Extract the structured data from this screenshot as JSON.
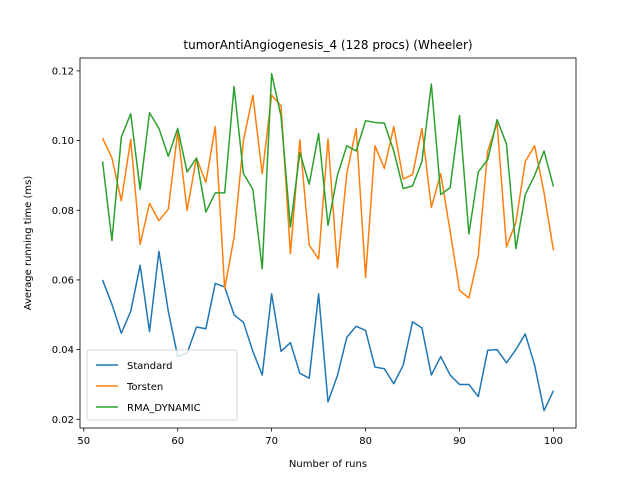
{
  "chart_data": {
    "type": "line",
    "title": "tumorAntiAngiogenesis_4 (128 procs) (Wheeler)",
    "xlabel": "Number of runs",
    "ylabel": "Average running time (ms)",
    "xlim": [
      49.6,
      102.4
    ],
    "ylim": [
      0.0175,
      0.1237
    ],
    "xticks": [
      50,
      60,
      70,
      80,
      90,
      100
    ],
    "xtick_labels": [
      "50",
      "60",
      "70",
      "80",
      "90",
      "100"
    ],
    "yticks": [
      0.02,
      0.04,
      0.06,
      0.08,
      0.1,
      0.12
    ],
    "ytick_labels": [
      "0.02",
      "0.04",
      "0.06",
      "0.08",
      "0.10",
      "0.12"
    ],
    "grid": false,
    "legend_position": "lower-left",
    "x": [
      52,
      53,
      54,
      55,
      56,
      57,
      58,
      59,
      60,
      61,
      62,
      63,
      64,
      65,
      66,
      67,
      68,
      69,
      70,
      71,
      72,
      73,
      74,
      75,
      76,
      77,
      78,
      79,
      80,
      81,
      82,
      83,
      84,
      85,
      86,
      87,
      88,
      89,
      90,
      91,
      92,
      93,
      94,
      95,
      96,
      97,
      98,
      99,
      100
    ],
    "series": [
      {
        "name": "Standard",
        "color": "#1f77b4",
        "values": [
          0.06,
          0.053,
          0.0447,
          0.051,
          0.0642,
          0.0452,
          0.0682,
          0.051,
          0.038,
          0.039,
          0.0465,
          0.046,
          0.059,
          0.058,
          0.05,
          0.0478,
          0.0395,
          0.0327,
          0.056,
          0.0395,
          0.042,
          0.0332,
          0.0318,
          0.056,
          0.025,
          0.0325,
          0.0435,
          0.0467,
          0.0455,
          0.035,
          0.0345,
          0.0302,
          0.0355,
          0.048,
          0.0462,
          0.0327,
          0.038,
          0.0327,
          0.03,
          0.03,
          0.0265,
          0.0398,
          0.04,
          0.0362,
          0.04,
          0.0445,
          0.0355,
          0.0225,
          0.0282
        ]
      },
      {
        "name": "Torsten",
        "color": "#ff7f0e",
        "values": [
          0.1007,
          0.095,
          0.0827,
          0.1003,
          0.0702,
          0.082,
          0.077,
          0.0803,
          0.1025,
          0.08,
          0.095,
          0.088,
          0.104,
          0.0575,
          0.0722,
          0.1,
          0.113,
          0.0905,
          0.113,
          0.11,
          0.0675,
          0.1002,
          0.07,
          0.066,
          0.1005,
          0.0635,
          0.0905,
          0.1035,
          0.0607,
          0.0985,
          0.092,
          0.104,
          0.089,
          0.0902,
          0.1035,
          0.0808,
          0.0905,
          0.074,
          0.057,
          0.0548,
          0.067,
          0.097,
          0.105,
          0.0695,
          0.0765,
          0.094,
          0.0985,
          0.085,
          0.0685
        ]
      },
      {
        "name": "RMA_DYNAMIC",
        "color": "#2ca02c",
        "values": [
          0.094,
          0.0713,
          0.101,
          0.1077,
          0.086,
          0.108,
          0.1035,
          0.0955,
          0.1035,
          0.091,
          0.095,
          0.0795,
          0.085,
          0.085,
          0.1155,
          0.0905,
          0.086,
          0.0632,
          0.1192,
          0.107,
          0.0752,
          0.0965,
          0.0875,
          0.102,
          0.0757,
          0.09,
          0.0985,
          0.097,
          0.1057,
          0.1052,
          0.105,
          0.097,
          0.0862,
          0.087,
          0.094,
          0.1162,
          0.0845,
          0.0865,
          0.1072,
          0.0732,
          0.091,
          0.0945,
          0.106,
          0.099,
          0.069,
          0.0845,
          0.09,
          0.097,
          0.0868
        ]
      }
    ]
  }
}
